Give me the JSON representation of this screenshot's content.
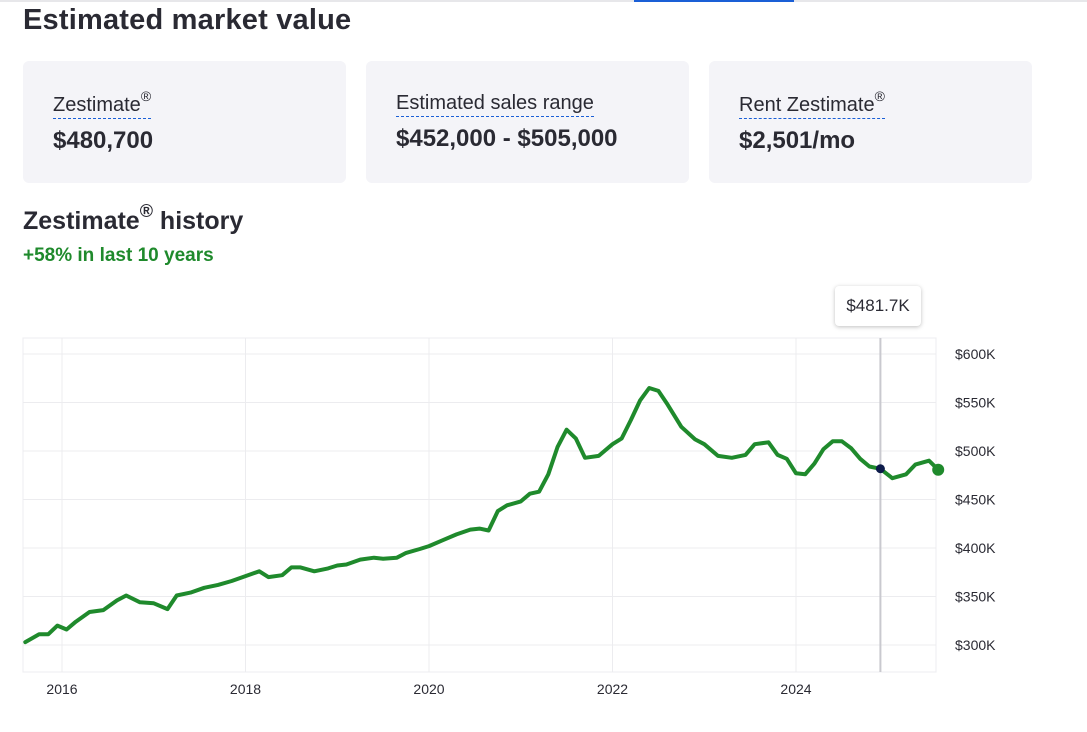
{
  "header": {
    "title": "Estimated market value"
  },
  "cards": {
    "zestimate": {
      "label": "Zestimate",
      "mark": "®",
      "value": "$480,700"
    },
    "range": {
      "label": "Estimated sales range",
      "value": "$452,000 - $505,000"
    },
    "rent": {
      "label": "Rent Zestimate",
      "mark": "®",
      "value": "$2,501/mo"
    }
  },
  "history": {
    "title": "Zestimate",
    "mark": "®",
    "title_suffix": " history",
    "change": "+58% in last 10 years",
    "tooltip": "$481.7K"
  },
  "colors": {
    "line": "#1f8a2c",
    "marker": "#0d1b4a",
    "accent": "#1a5fd6"
  },
  "chart_data": {
    "type": "line",
    "x_ticks": [
      "2016",
      "2018",
      "2020",
      "2022",
      "2024"
    ],
    "y_ticks": [
      "$600K",
      "$550K",
      "$500K",
      "$450K",
      "$400K",
      "$350K",
      "$300K"
    ],
    "ylim": [
      275000,
      615000
    ],
    "xlim": [
      2015.6,
      2025.6
    ],
    "grid": true,
    "hover": {
      "x": 2024.92,
      "y": 481700
    },
    "series": [
      {
        "x": [
          2015.6,
          2015.75,
          2015.85,
          2015.95,
          2016.05,
          2016.15,
          2016.3,
          2016.45,
          2016.6,
          2016.7,
          2016.85,
          2017.0,
          2017.15,
          2017.25,
          2017.4,
          2017.55,
          2017.7,
          2017.85,
          2018.0,
          2018.15,
          2018.25,
          2018.4,
          2018.5,
          2018.6,
          2018.75,
          2018.9,
          2019.0,
          2019.1,
          2019.25,
          2019.4,
          2019.5,
          2019.65,
          2019.75,
          2019.9,
          2020.0,
          2020.15,
          2020.3,
          2020.45,
          2020.55,
          2020.65,
          2020.75,
          2020.85,
          2021.0,
          2021.1,
          2021.2,
          2021.3,
          2021.4,
          2021.5,
          2021.6,
          2021.7,
          2021.85,
          2022.0,
          2022.1,
          2022.2,
          2022.3,
          2022.4,
          2022.5,
          2022.6,
          2022.75,
          2022.9,
          2023.0,
          2023.15,
          2023.3,
          2023.45,
          2023.55,
          2023.7,
          2023.8,
          2023.9,
          2024.0,
          2024.1,
          2024.2,
          2024.3,
          2024.4,
          2024.5,
          2024.6,
          2024.7,
          2024.8,
          2024.92
        ],
        "values": [
          303000,
          311000,
          311000,
          320000,
          316000,
          324000,
          334000,
          336000,
          346000,
          351000,
          344000,
          343000,
          337000,
          351000,
          354000,
          359000,
          362000,
          366000,
          371000,
          376000,
          370000,
          372000,
          380000,
          380000,
          376000,
          379000,
          382000,
          383000,
          388000,
          390000,
          389000,
          390000,
          395000,
          399000,
          402000,
          408000,
          414000,
          419000,
          420000,
          418000,
          438000,
          444000,
          448000,
          456000,
          458000,
          476000,
          504000,
          522000,
          513000,
          493000,
          495000,
          507000,
          513000,
          532000,
          552000,
          565000,
          562000,
          548000,
          525000,
          512000,
          507000,
          495000,
          493000,
          496000,
          507000,
          509000,
          496000,
          492000,
          477000,
          476000,
          487000,
          502000,
          510000,
          510000,
          503000,
          492000,
          484000,
          481700
        ],
        "note": ""
      },
      {
        "x": [
          2024.92,
          2025.05,
          2025.2,
          2025.3,
          2025.45,
          2025.55
        ],
        "values": [
          481700,
          472000,
          476000,
          486000,
          490000,
          480700
        ]
      }
    ]
  }
}
